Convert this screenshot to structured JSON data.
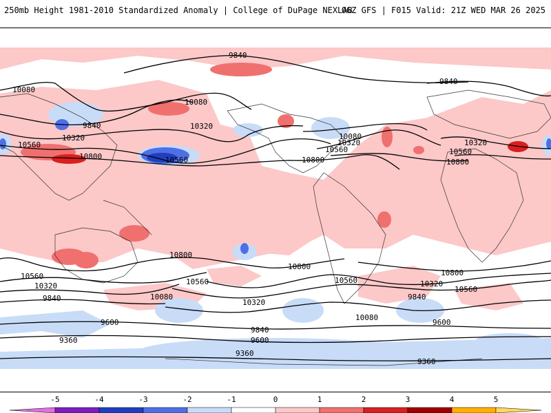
{
  "header": {
    "left_title": "250mb Height 1981-2010 Standardized Anomaly | College of DuPage NEXLAB",
    "right_title": "06Z GFS | F015 Valid: 21Z WED MAR 26 2025"
  },
  "colorbar": {
    "ticks": [
      "-5",
      "-4",
      "-3",
      "-2",
      "-1",
      "0",
      "1",
      "2",
      "3",
      "4",
      "5"
    ],
    "colors": [
      "#e070e0",
      "#7a1fbf",
      "#1f3fbf",
      "#4f6fe6",
      "#c8dcf8",
      "#ffffff",
      "#fcc8c8",
      "#f07070",
      "#d82020",
      "#a00000",
      "#ffb000",
      "#ffd860"
    ]
  },
  "contour_labels": {
    "l9840_top": "9840",
    "l9840_ne": "9840",
    "l10080_nw": "10080",
    "l10080_a": "10080",
    "l9840_w": "9840",
    "l10320_w": "10320",
    "l10560_w": "10560",
    "l10800_w": "10800",
    "l10320_c": "10320",
    "l10560_c": "10560",
    "l10800_na": "10800",
    "l10080_na": "10080",
    "l10320_na": "10320",
    "l10560_na": "10560",
    "l10320_e": "10320",
    "l10560_e": "10560",
    "l10800_e": "10800",
    "l10800_s1": "10800",
    "l10800_s2": "10800",
    "l10800_s3": "10800",
    "l10560_s1": "10560",
    "l10560_s2": "10560",
    "l10560_s3": "10560",
    "l10560_s4": "10560",
    "l10320_s1": "10320",
    "l10320_s2": "10320",
    "l10320_s3": "10320",
    "l10080_s1": "10080",
    "l10080_s2": "10080",
    "l9840_s1": "9840",
    "l9840_s2": "9840",
    "l9840_s3": "9840",
    "l9600_s1": "9600",
    "l9600_s2": "9600",
    "l9600_s3": "9600",
    "l9360_s1": "9360",
    "l9360_s2": "9360",
    "l9360_s3": "9360"
  }
}
